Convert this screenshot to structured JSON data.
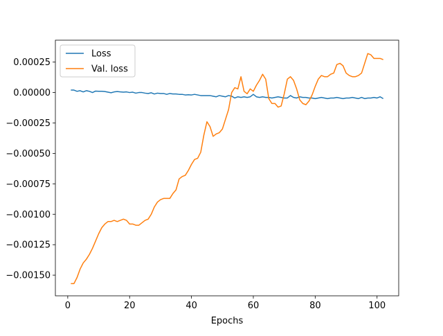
{
  "chart_data": {
    "type": "line",
    "title": "",
    "xlabel": "Epochs",
    "ylabel": "",
    "xlim": [
      -4,
      107
    ],
    "ylim": [
      -0.00167,
      0.00043
    ],
    "xticks": [
      0,
      20,
      40,
      60,
      80,
      100
    ],
    "xtick_labels": [
      "0",
      "20",
      "40",
      "60",
      "80",
      "100"
    ],
    "yticks": [
      0.00025,
      0.0,
      -0.00025,
      -0.0005,
      -0.00075,
      -0.001,
      -0.00125,
      -0.0015
    ],
    "ytick_labels": [
      "0.00025",
      "0.00000",
      "−0.00025",
      "−0.00050",
      "−0.00075",
      "−0.00100",
      "−0.00125",
      "−0.00150"
    ],
    "grid": false,
    "legend_position": "upper-left",
    "series": [
      {
        "name": "Loss",
        "color": "#1f77b4",
        "x": [
          1,
          2,
          3,
          4,
          5,
          6,
          7,
          8,
          9,
          10,
          11,
          12,
          13,
          14,
          15,
          16,
          17,
          18,
          19,
          20,
          21,
          22,
          23,
          24,
          25,
          26,
          27,
          28,
          29,
          30,
          31,
          32,
          33,
          34,
          35,
          36,
          37,
          38,
          39,
          40,
          41,
          42,
          43,
          44,
          45,
          46,
          47,
          48,
          49,
          50,
          51,
          52,
          53,
          54,
          55,
          56,
          57,
          58,
          59,
          60,
          61,
          62,
          63,
          64,
          65,
          66,
          67,
          68,
          69,
          70,
          71,
          72,
          73,
          74,
          75,
          76,
          77,
          78,
          79,
          80,
          81,
          82,
          83,
          84,
          85,
          86,
          87,
          88,
          89,
          90,
          91,
          92,
          93,
          94,
          95,
          96,
          97,
          98,
          99,
          100,
          101,
          102
        ],
        "y": [
          2e-05,
          2e-05,
          1e-05,
          1.5e-05,
          5e-06,
          1.5e-05,
          1e-05,
          0.0,
          1.2e-05,
          1e-05,
          1e-05,
          8e-06,
          3e-06,
          -2e-06,
          5e-06,
          8e-06,
          5e-06,
          3e-06,
          5e-06,
          0.0,
          3e-06,
          -5e-06,
          0.0,
          0.0,
          -5e-06,
          -8e-06,
          -2e-06,
          -1.2e-05,
          -5e-06,
          -8e-06,
          -8e-06,
          -1.5e-05,
          -8e-06,
          -1.2e-05,
          -1.2e-05,
          -1.5e-05,
          -1.5e-05,
          -2e-05,
          -1.8e-05,
          -2e-05,
          -1.5e-05,
          -2e-05,
          -2.5e-05,
          -2.5e-05,
          -2.5e-05,
          -2.5e-05,
          -3e-05,
          -3.5e-05,
          -2.5e-05,
          -3e-05,
          -3.5e-05,
          -2.5e-05,
          -3e-05,
          -4.5e-05,
          -3.5e-05,
          -4e-05,
          -3.5e-05,
          -4e-05,
          -3.5e-05,
          -1.5e-05,
          -3.5e-05,
          -4e-05,
          -3.5e-05,
          -4e-05,
          -4e-05,
          -4.5e-05,
          -4e-05,
          -3.5e-05,
          -4e-05,
          -4.5e-05,
          -4.5e-05,
          -2.5e-05,
          -4e-05,
          -4.5e-05,
          -3.5e-05,
          -4e-05,
          -4e-05,
          -4.5e-05,
          -4.5e-05,
          -5e-05,
          -4.5e-05,
          -4e-05,
          -4.5e-05,
          -5e-05,
          -4.5e-05,
          -4.5e-05,
          -4e-05,
          -4.5e-05,
          -5e-05,
          -4.5e-05,
          -4.5e-05,
          -4e-05,
          -4.5e-05,
          -5e-05,
          -4e-05,
          -5e-05,
          -4.5e-05,
          -4.5e-05,
          -4e-05,
          -4.5e-05,
          -3.5e-05,
          -5e-05
        ]
      },
      {
        "name": "Val. loss",
        "color": "#ff7f0e",
        "x": [
          1,
          2,
          3,
          4,
          5,
          6,
          7,
          8,
          9,
          10,
          11,
          12,
          13,
          14,
          15,
          16,
          17,
          18,
          19,
          20,
          21,
          22,
          23,
          24,
          25,
          26,
          27,
          28,
          29,
          30,
          31,
          32,
          33,
          34,
          35,
          36,
          37,
          38,
          39,
          40,
          41,
          42,
          43,
          44,
          45,
          46,
          47,
          48,
          49,
          50,
          51,
          52,
          53,
          54,
          55,
          56,
          57,
          58,
          59,
          60,
          61,
          62,
          63,
          64,
          65,
          66,
          67,
          68,
          69,
          70,
          71,
          72,
          73,
          74,
          75,
          76,
          77,
          78,
          79,
          80,
          81,
          82,
          83,
          84,
          85,
          86,
          87,
          88,
          89,
          90,
          91,
          92,
          93,
          94,
          95,
          96,
          97,
          98,
          99,
          100,
          101,
          102
        ],
        "y": [
          -0.00157,
          -0.00157,
          -0.00152,
          -0.00145,
          -0.0014,
          -0.00137,
          -0.00133,
          -0.00128,
          -0.00122,
          -0.00116,
          -0.00111,
          -0.00108,
          -0.00106,
          -0.00106,
          -0.00105,
          -0.00106,
          -0.00105,
          -0.00104,
          -0.00105,
          -0.00108,
          -0.00108,
          -0.00109,
          -0.00109,
          -0.00107,
          -0.00105,
          -0.00104,
          -0.001,
          -0.00094,
          -0.0009,
          -0.00088,
          -0.00087,
          -0.00087,
          -0.00087,
          -0.00083,
          -0.0008,
          -0.00071,
          -0.00069,
          -0.00068,
          -0.00064,
          -0.00059,
          -0.00055,
          -0.00054,
          -0.00049,
          -0.00035,
          -0.00024,
          -0.00028,
          -0.00036,
          -0.00034,
          -0.00033,
          -0.0003,
          -0.00022,
          -0.00014,
          -0.0,
          4e-05,
          3e-05,
          0.00013,
          1e-05,
          -1e-05,
          3e-05,
          1e-05,
          6e-05,
          0.0001,
          0.00015,
          0.00011,
          -5e-05,
          -9e-05,
          -9e-05,
          -0.00012,
          -0.00011,
          -1e-05,
          0.00011,
          0.00013,
          0.0001,
          3e-05,
          -6e-05,
          -9e-05,
          -0.0001,
          -7e-05,
          -2e-05,
          5e-05,
          0.00011,
          0.00014,
          0.00013,
          0.00013,
          0.00015,
          0.00016,
          0.00023,
          0.00024,
          0.00022,
          0.00016,
          0.00014,
          0.00013,
          0.00013,
          0.00014,
          0.00016,
          0.00024,
          0.00032,
          0.00031,
          0.00028,
          0.00028,
          0.00028,
          0.00027
        ]
      }
    ]
  }
}
